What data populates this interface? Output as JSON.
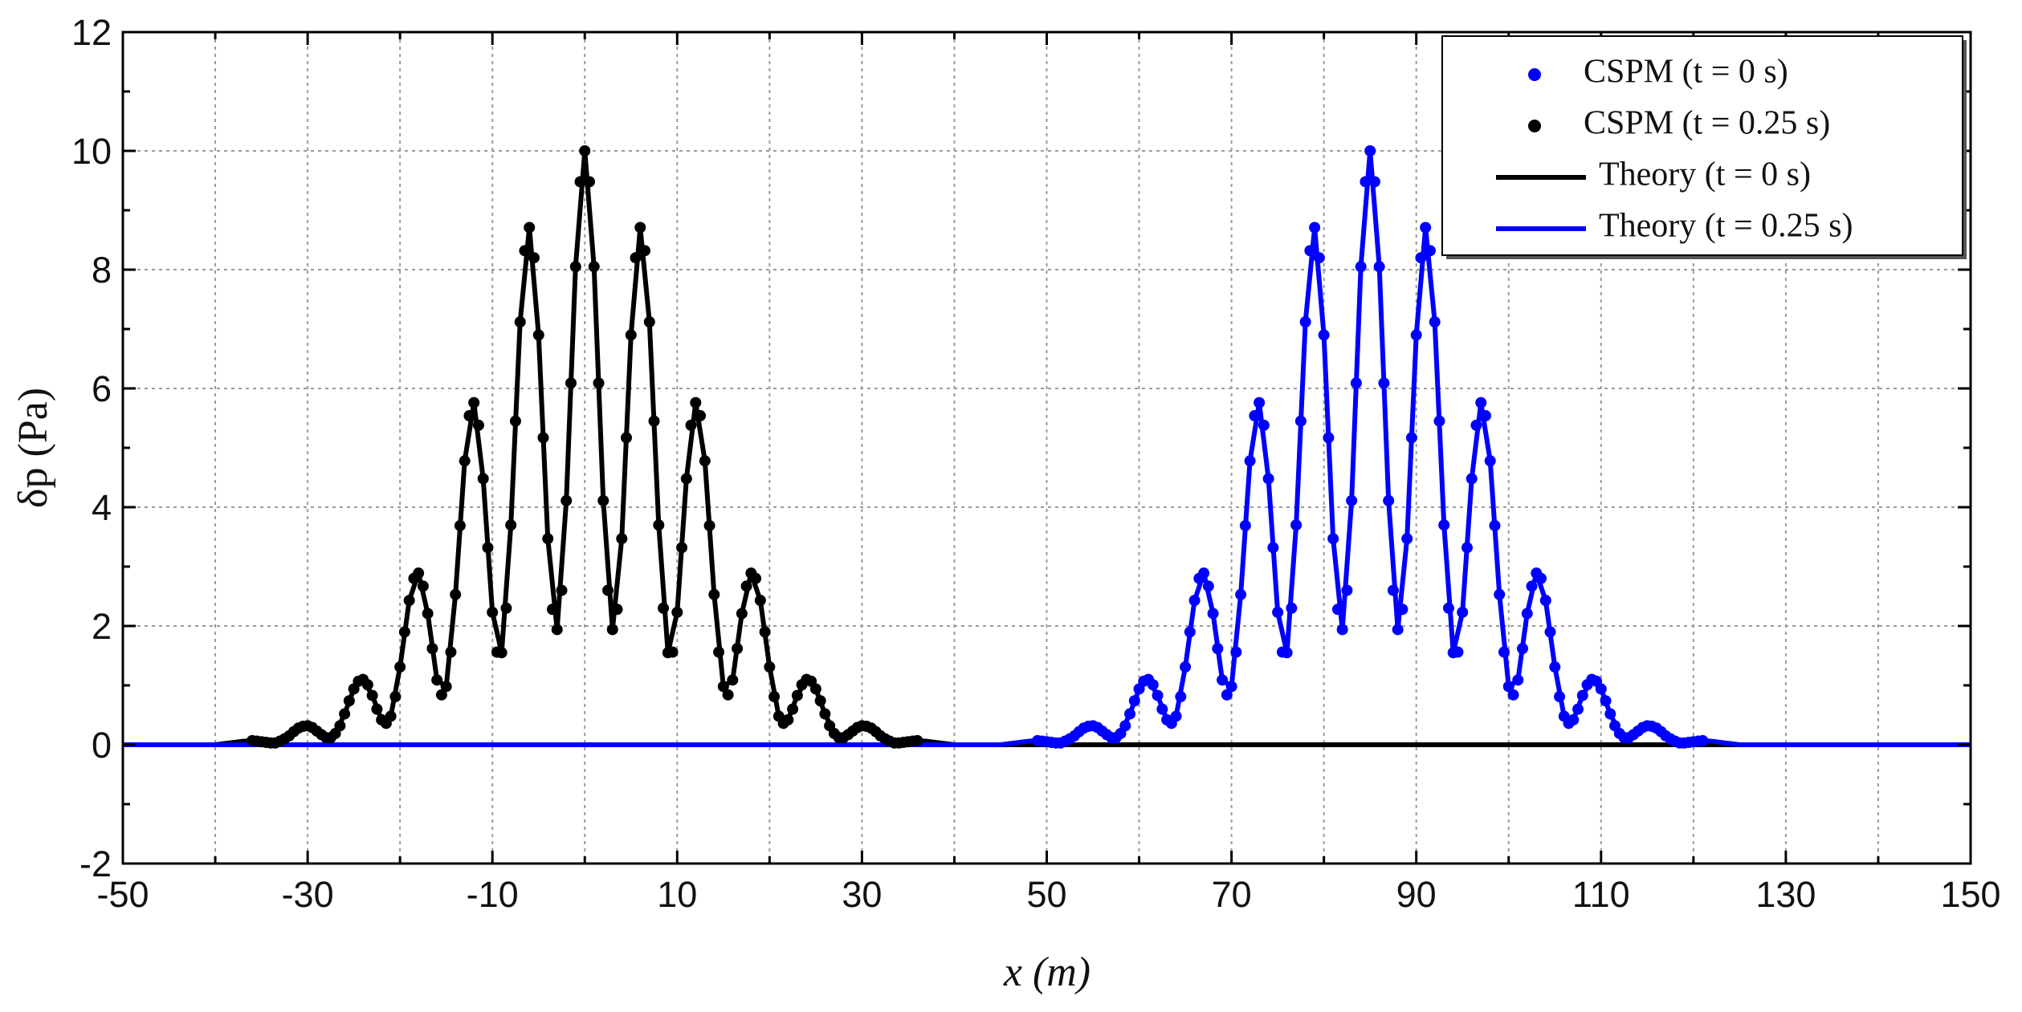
{
  "chart_data": {
    "type": "line",
    "xlabel": "x (m)",
    "ylabel": "δp (Pa)",
    "xlim": [
      -50,
      150
    ],
    "xticks": [
      -50,
      -30,
      -10,
      10,
      30,
      50,
      70,
      90,
      110,
      130,
      150
    ],
    "xminorticks": [
      -40,
      -20,
      0,
      20,
      40,
      60,
      80,
      100,
      120,
      140
    ],
    "ylim": [
      -2,
      12
    ],
    "yticks": [
      -2,
      0,
      2,
      4,
      6,
      8,
      10,
      12
    ],
    "yminorticks": [
      -1,
      1,
      3,
      5,
      7,
      9,
      11
    ],
    "grid": true,
    "legend": "upper right",
    "series": [
      {
        "name": "Theory (t = 0 s)",
        "kind": "line",
        "color": "#000000",
        "x": [
          -50,
          -40,
          -39,
          -38,
          -37,
          -36,
          -35,
          -34,
          -33,
          -32,
          -31,
          -30,
          -29,
          -28,
          -27,
          -26,
          -25,
          -24,
          -23,
          -22,
          -21,
          -20,
          -19,
          -18,
          -17,
          -16,
          -15,
          -14,
          -13,
          -12,
          -11,
          -10,
          -9,
          -8,
          -7,
          -6,
          -5,
          -4,
          -3,
          -2,
          -1,
          0,
          1,
          2,
          3,
          4,
          5,
          6,
          7,
          8,
          9,
          10,
          11,
          12,
          13,
          14,
          15,
          16,
          17,
          18,
          19,
          20,
          21,
          22,
          23,
          24,
          25,
          26,
          27,
          28,
          29,
          30,
          31,
          32,
          33,
          34,
          35,
          36,
          37,
          38,
          39,
          40,
          150
        ],
        "values": [
          0,
          0,
          0.02,
          0.04,
          0.06,
          0.07,
          0.05,
          0.03,
          0.06,
          0.15,
          0.28,
          0.32,
          0.23,
          0.12,
          0.19,
          0.52,
          0.94,
          1.1,
          0.83,
          0.42,
          0.48,
          1.31,
          2.43,
          2.89,
          2.21,
          1.09,
          0.98,
          2.53,
          4.78,
          5.76,
          4.48,
          2.23,
          1.55,
          3.7,
          7.12,
          8.71,
          6.9,
          3.47,
          1.94,
          4.11,
          8.05,
          10,
          8.05,
          4.11,
          1.94,
          3.47,
          6.9,
          8.71,
          7.12,
          3.7,
          1.55,
          2.23,
          4.48,
          5.76,
          4.78,
          2.53,
          0.98,
          1.09,
          2.21,
          2.89,
          2.43,
          1.31,
          0.48,
          0.42,
          0.83,
          1.1,
          0.94,
          0.52,
          0.19,
          0.12,
          0.23,
          0.32,
          0.28,
          0.15,
          0.06,
          0.03,
          0.05,
          0.07,
          0.06,
          0.04,
          0.02,
          0,
          0
        ]
      },
      {
        "name": "Theory (t = 0.25 s)",
        "kind": "line",
        "color": "#0000ff",
        "x": [
          -50,
          45,
          46,
          47,
          48,
          49,
          50,
          51,
          52,
          53,
          54,
          55,
          56,
          57,
          58,
          59,
          60,
          61,
          62,
          63,
          64,
          65,
          66,
          67,
          68,
          69,
          70,
          71,
          72,
          73,
          74,
          75,
          76,
          77,
          78,
          79,
          80,
          81,
          82,
          83,
          84,
          85,
          86,
          87,
          88,
          89,
          90,
          91,
          92,
          93,
          94,
          95,
          96,
          97,
          98,
          99,
          100,
          101,
          102,
          103,
          104,
          105,
          106,
          107,
          108,
          109,
          110,
          111,
          112,
          113,
          114,
          115,
          116,
          117,
          118,
          119,
          120,
          121,
          122,
          123,
          124,
          125,
          150
        ],
        "values": [
          0,
          0,
          0.02,
          0.04,
          0.06,
          0.07,
          0.05,
          0.03,
          0.06,
          0.15,
          0.28,
          0.32,
          0.23,
          0.12,
          0.19,
          0.52,
          0.94,
          1.1,
          0.83,
          0.42,
          0.48,
          1.31,
          2.43,
          2.89,
          2.21,
          1.09,
          0.98,
          2.53,
          4.78,
          5.76,
          4.48,
          2.23,
          1.55,
          3.7,
          7.12,
          8.71,
          6.9,
          3.47,
          1.94,
          4.11,
          8.05,
          10,
          8.05,
          4.11,
          1.94,
          3.47,
          6.9,
          8.71,
          7.12,
          3.7,
          1.55,
          2.23,
          4.48,
          5.76,
          4.78,
          2.53,
          0.98,
          1.09,
          2.21,
          2.89,
          2.43,
          1.31,
          0.48,
          0.42,
          0.83,
          1.1,
          0.94,
          0.52,
          0.19,
          0.12,
          0.23,
          0.32,
          0.28,
          0.15,
          0.06,
          0.03,
          0.05,
          0.07,
          0.06,
          0.04,
          0.02,
          0,
          0
        ]
      },
      {
        "name": "CSPM (t = 0 s)",
        "kind": "scatter",
        "color": "#0000ff",
        "x": [
          49,
          49.5,
          50,
          50.5,
          51,
          51.5,
          52,
          52.5,
          53,
          53.5,
          54,
          54.5,
          55,
          55.5,
          56,
          56.5,
          57,
          57.5,
          58,
          58.5,
          59,
          59.5,
          60,
          60.5,
          61,
          61.5,
          62,
          62.5,
          63,
          63.5,
          64,
          64.5,
          65,
          65.5,
          66,
          66.5,
          67,
          67.5,
          68,
          68.5,
          69,
          69.5,
          70,
          70.5,
          71,
          71.5,
          72,
          72.5,
          73,
          73.5,
          74,
          74.5,
          75,
          75.5,
          76,
          76.5,
          77,
          77.5,
          78,
          78.5,
          79,
          79.5,
          80,
          80.5,
          81,
          81.5,
          82,
          82.5,
          83,
          83.5,
          84,
          84.5,
          85,
          85.5,
          86,
          86.5,
          87,
          87.5,
          88,
          88.5,
          89,
          89.5,
          90,
          90.5,
          91,
          91.5,
          92,
          92.5,
          93,
          93.5,
          94,
          94.5,
          95,
          95.5,
          96,
          96.5,
          97,
          97.5,
          98,
          98.5,
          99,
          99.5,
          100,
          100.5,
          101,
          101.5,
          102,
          102.5,
          103,
          103.5,
          104,
          104.5,
          105,
          105.5,
          106,
          106.5,
          107,
          107.5,
          108,
          108.5,
          109,
          109.5,
          110,
          110.5,
          111,
          111.5,
          112,
          112.5,
          113,
          113.5,
          114,
          114.5,
          115,
          115.5,
          116,
          116.5,
          117,
          117.5,
          118,
          118.5,
          119,
          119.5,
          120,
          120.5,
          121
        ],
        "values": [
          0.07,
          0.06,
          0.05,
          0.04,
          0.03,
          0.03,
          0.06,
          0.1,
          0.15,
          0.22,
          0.28,
          0.31,
          0.32,
          0.29,
          0.23,
          0.17,
          0.12,
          0.12,
          0.19,
          0.32,
          0.52,
          0.74,
          0.94,
          1.07,
          1.1,
          1.01,
          0.83,
          0.6,
          0.42,
          0.36,
          0.48,
          0.81,
          1.31,
          1.9,
          2.43,
          2.8,
          2.89,
          2.67,
          2.21,
          1.62,
          1.09,
          0.84,
          0.98,
          1.56,
          2.53,
          3.69,
          4.78,
          5.54,
          5.76,
          5.38,
          4.48,
          3.32,
          2.23,
          1.56,
          1.55,
          2.3,
          3.7,
          5.45,
          7.12,
          8.32,
          8.71,
          8.2,
          6.9,
          5.17,
          3.47,
          2.28,
          1.94,
          2.6,
          4.11,
          6.09,
          8.05,
          9.48,
          10,
          9.48,
          8.05,
          6.09,
          4.11,
          2.6,
          1.94,
          2.28,
          3.47,
          5.17,
          6.9,
          8.2,
          8.71,
          8.32,
          7.12,
          5.45,
          3.7,
          2.3,
          1.55,
          1.56,
          2.23,
          3.32,
          4.48,
          5.38,
          5.76,
          5.54,
          4.78,
          3.69,
          2.53,
          1.56,
          0.98,
          0.84,
          1.09,
          1.62,
          2.21,
          2.67,
          2.89,
          2.8,
          2.43,
          1.9,
          1.31,
          0.81,
          0.48,
          0.36,
          0.42,
          0.6,
          0.83,
          1.01,
          1.1,
          1.07,
          0.94,
          0.74,
          0.52,
          0.32,
          0.19,
          0.12,
          0.12,
          0.17,
          0.23,
          0.29,
          0.32,
          0.31,
          0.28,
          0.22,
          0.15,
          0.1,
          0.06,
          0.03,
          0.03,
          0.04,
          0.05,
          0.06,
          0.07
        ]
      },
      {
        "name": "CSPM (t = 0.25 s)",
        "kind": "scatter",
        "color": "#000000",
        "x": [
          -36,
          -35.5,
          -35,
          -34.5,
          -34,
          -33.5,
          -33,
          -32.5,
          -32,
          -31.5,
          -31,
          -30.5,
          -30,
          -29.5,
          -29,
          -28.5,
          -28,
          -27.5,
          -27,
          -26.5,
          -26,
          -25.5,
          -25,
          -24.5,
          -24,
          -23.5,
          -23,
          -22.5,
          -22,
          -21.5,
          -21,
          -20.5,
          -20,
          -19.5,
          -19,
          -18.5,
          -18,
          -17.5,
          -17,
          -16.5,
          -16,
          -15.5,
          -15,
          -14.5,
          -14,
          -13.5,
          -13,
          -12.5,
          -12,
          -11.5,
          -11,
          -10.5,
          -10,
          -9.5,
          -9,
          -8.5,
          -8,
          -7.5,
          -7,
          -6.5,
          -6,
          -5.5,
          -5,
          -4.5,
          -4,
          -3.5,
          -3,
          -2.5,
          -2,
          -1.5,
          -1,
          -0.5,
          0,
          0.5,
          1,
          1.5,
          2,
          2.5,
          3,
          3.5,
          4,
          4.5,
          5,
          5.5,
          6,
          6.5,
          7,
          7.5,
          8,
          8.5,
          9,
          9.5,
          10,
          10.5,
          11,
          11.5,
          12,
          12.5,
          13,
          13.5,
          14,
          14.5,
          15,
          15.5,
          16,
          16.5,
          17,
          17.5,
          18,
          18.5,
          19,
          19.5,
          20,
          20.5,
          21,
          21.5,
          22,
          22.5,
          23,
          23.5,
          24,
          24.5,
          25,
          25.5,
          26,
          26.5,
          27,
          27.5,
          28,
          28.5,
          29,
          29.5,
          30,
          30.5,
          31,
          31.5,
          32,
          32.5,
          33,
          33.5,
          34,
          34.5,
          35,
          35.5,
          36
        ],
        "values": [
          0.07,
          0.06,
          0.05,
          0.04,
          0.03,
          0.03,
          0.06,
          0.1,
          0.15,
          0.22,
          0.28,
          0.31,
          0.32,
          0.29,
          0.23,
          0.17,
          0.12,
          0.12,
          0.19,
          0.32,
          0.52,
          0.74,
          0.94,
          1.07,
          1.1,
          1.01,
          0.83,
          0.6,
          0.42,
          0.36,
          0.48,
          0.81,
          1.31,
          1.9,
          2.43,
          2.8,
          2.89,
          2.67,
          2.21,
          1.62,
          1.09,
          0.84,
          0.98,
          1.56,
          2.53,
          3.69,
          4.78,
          5.54,
          5.76,
          5.38,
          4.48,
          3.32,
          2.23,
          1.56,
          1.55,
          2.3,
          3.7,
          5.45,
          7.12,
          8.32,
          8.71,
          8.2,
          6.9,
          5.17,
          3.47,
          2.28,
          1.94,
          2.6,
          4.11,
          6.09,
          8.05,
          9.48,
          10,
          9.48,
          8.05,
          6.09,
          4.11,
          2.6,
          1.94,
          2.28,
          3.47,
          5.17,
          6.9,
          8.2,
          8.71,
          8.32,
          7.12,
          5.45,
          3.7,
          2.3,
          1.55,
          1.56,
          2.23,
          3.32,
          4.48,
          5.38,
          5.76,
          5.54,
          4.78,
          3.69,
          2.53,
          1.56,
          0.98,
          0.84,
          1.09,
          1.62,
          2.21,
          2.67,
          2.89,
          2.8,
          2.43,
          1.9,
          1.31,
          0.81,
          0.48,
          0.36,
          0.42,
          0.6,
          0.83,
          1.01,
          1.1,
          1.07,
          0.94,
          0.74,
          0.52,
          0.32,
          0.19,
          0.12,
          0.12,
          0.17,
          0.23,
          0.29,
          0.32,
          0.31,
          0.28,
          0.22,
          0.15,
          0.1,
          0.06,
          0.03,
          0.03,
          0.04,
          0.05,
          0.06,
          0.07
        ]
      }
    ]
  }
}
